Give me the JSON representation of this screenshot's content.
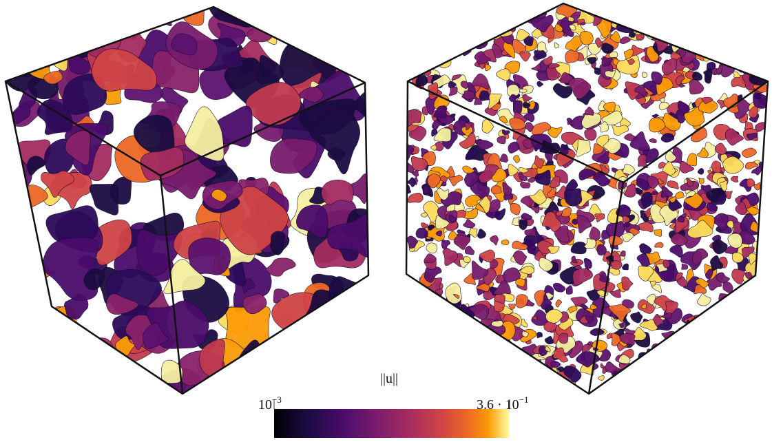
{
  "colorbar": {
    "label": "||u||",
    "min": {
      "base": "10",
      "exponent": "−3"
    },
    "max": {
      "base": "3.6 · 10",
      "exponent": "−1"
    }
  }
}
